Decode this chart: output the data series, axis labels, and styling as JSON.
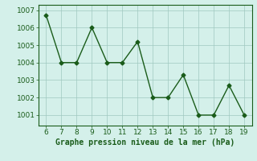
{
  "x": [
    6,
    7,
    8,
    9,
    10,
    11,
    12,
    13,
    14,
    15,
    16,
    17,
    18,
    19
  ],
  "y": [
    1006.7,
    1004.0,
    1004.0,
    1006.0,
    1004.0,
    1004.0,
    1005.2,
    1002.0,
    1002.0,
    1003.3,
    1001.0,
    1001.0,
    1002.7,
    1001.0
  ],
  "line_color": "#1a5c1a",
  "marker": "D",
  "marker_size": 2.5,
  "bg_color": "#d4f0ea",
  "grid_color": "#a0c8c0",
  "xlabel": "Graphe pression niveau de la mer (hPa)",
  "xlabel_fontsize": 7,
  "xlim": [
    5.5,
    19.5
  ],
  "ylim": [
    1000.4,
    1007.3
  ],
  "yticks": [
    1001,
    1002,
    1003,
    1004,
    1005,
    1006,
    1007
  ],
  "xticks": [
    6,
    7,
    8,
    9,
    10,
    11,
    12,
    13,
    14,
    15,
    16,
    17,
    18,
    19
  ],
  "tick_fontsize": 6.5,
  "linewidth": 1.0
}
